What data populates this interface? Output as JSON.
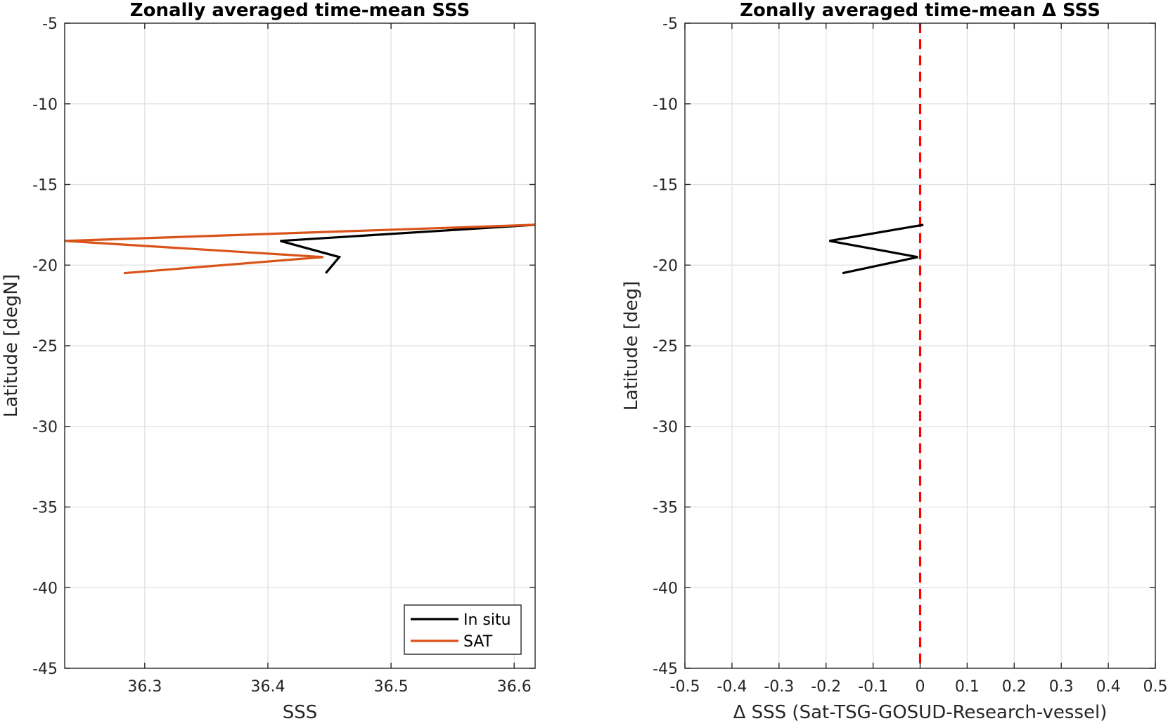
{
  "colors": {
    "in_situ": "#000000",
    "sat": "#d95319",
    "zero_line": "#ff0000",
    "grid": "#dfdfdf",
    "axis": "#262626"
  },
  "chart_data": [
    {
      "type": "line",
      "title": "Zonally averaged time-mean SSS",
      "xlabel": "SSS",
      "ylabel": "Latitude [degN]",
      "xlim": [
        36.235,
        36.617
      ],
      "ylim": [
        -45,
        -5
      ],
      "xticks": [
        36.3,
        36.4,
        36.5,
        36.6
      ],
      "xtick_labels": [
        "36.3",
        "36.4",
        "36.5",
        "36.6"
      ],
      "yticks": [
        -45,
        -40,
        -35,
        -30,
        -25,
        -20,
        -15,
        -10,
        -5
      ],
      "ytick_labels": [
        "-45",
        "-40",
        "-35",
        "-30",
        "-25",
        "-20",
        "-15",
        "-10",
        "-5"
      ],
      "grid": true,
      "legend_position": "bottom-right",
      "series": [
        {
          "name": "In situ",
          "color_key": "in_situ",
          "points": [
            [
              36.617,
              -17.5
            ],
            [
              36.41,
              -18.5
            ],
            [
              36.458,
              -19.5
            ],
            [
              36.447,
              -20.5
            ]
          ]
        },
        {
          "name": "SAT",
          "color_key": "sat",
          "points": [
            [
              36.617,
              -17.5
            ],
            [
              36.235,
              -18.5
            ],
            [
              36.445,
              -19.5
            ],
            [
              36.283,
              -20.5
            ]
          ]
        }
      ]
    },
    {
      "type": "line",
      "title": "Zonally averaged time-mean Δ SSS",
      "xlabel": "Δ SSS (Sat-TSG-GOSUD-Research-vessel)",
      "ylabel": "Latitude [deg]",
      "xlim": [
        -0.5,
        0.5
      ],
      "ylim": [
        -45,
        -5
      ],
      "xticks": [
        -0.5,
        -0.4,
        -0.3,
        -0.2,
        -0.1,
        0,
        0.1,
        0.2,
        0.3,
        0.4,
        0.5
      ],
      "xtick_labels": [
        "-0.5",
        "-0.4",
        "-0.3",
        "-0.2",
        "-0.1",
        "0",
        "0.1",
        "0.2",
        "0.3",
        "0.4",
        "0.5"
      ],
      "yticks": [
        -45,
        -40,
        -35,
        -30,
        -25,
        -20,
        -15,
        -10,
        -5
      ],
      "ytick_labels": [
        "-45",
        "-40",
        "-35",
        "-30",
        "-25",
        "-20",
        "-15",
        "-10",
        "-5"
      ],
      "grid": true,
      "series": [
        {
          "color_key": "in_situ",
          "points": [
            [
              0.007,
              -17.5
            ],
            [
              -0.193,
              -18.5
            ],
            [
              -0.005,
              -19.5
            ],
            [
              -0.165,
              -20.5
            ]
          ]
        }
      ],
      "reference_lines": [
        {
          "orientation": "vertical",
          "x": 0,
          "style": "dashed",
          "color_key": "zero_line"
        }
      ]
    }
  ]
}
